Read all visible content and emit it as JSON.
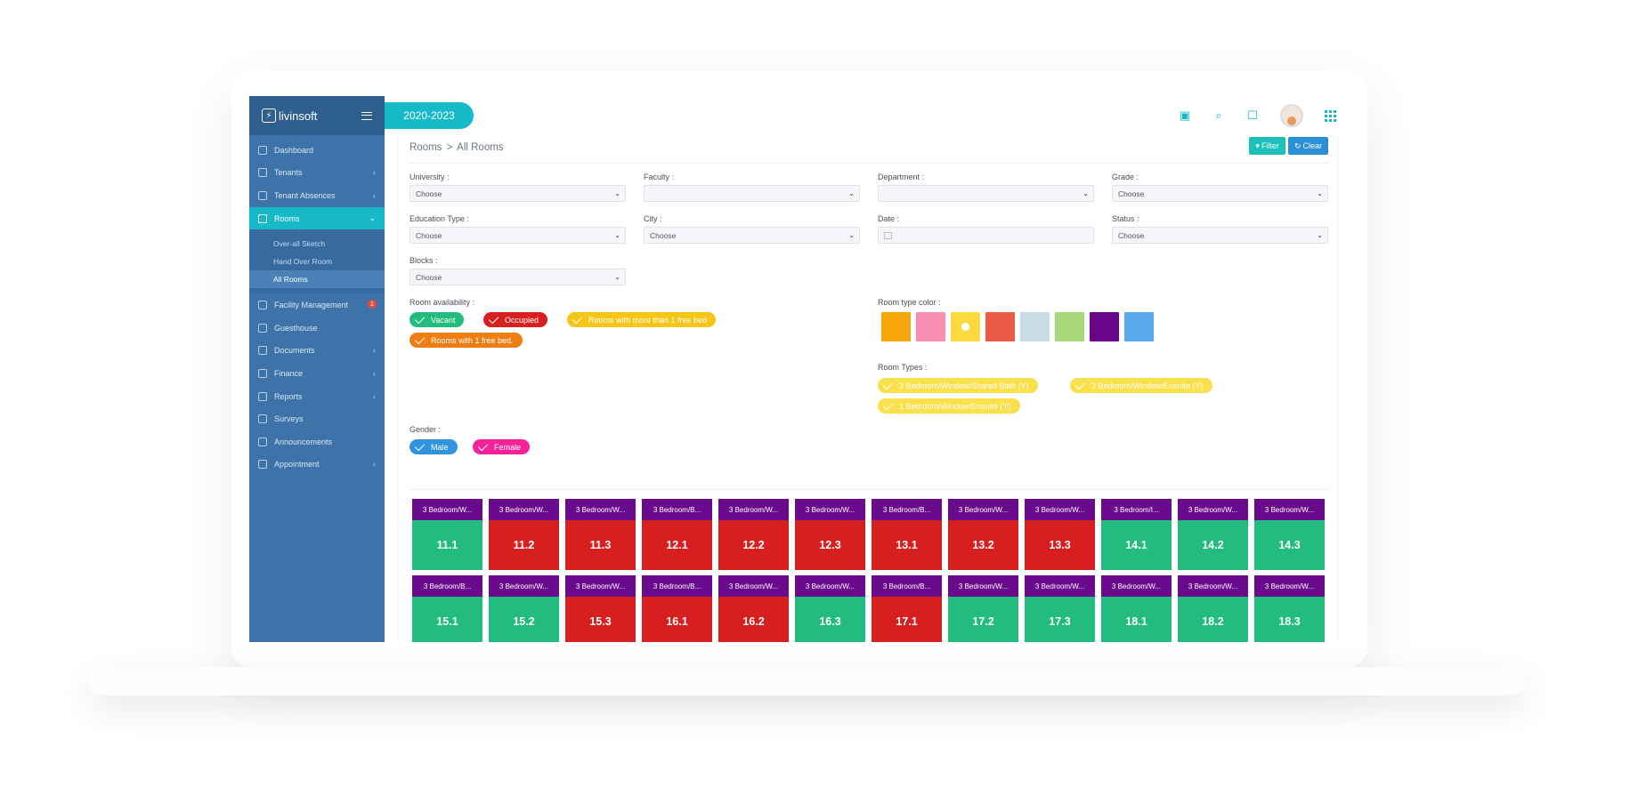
{
  "app": {
    "name": "livinsoft",
    "year": "2020-2023"
  },
  "sidebar": {
    "items": [
      {
        "label": "Dashboard",
        "chevron": false
      },
      {
        "label": "Tenants",
        "chevron": true
      },
      {
        "label": "Tenant Absences",
        "chevron": true
      },
      {
        "label": "Rooms",
        "chevron": true,
        "active": true
      },
      {
        "label": "Facility Management",
        "badge": "1"
      },
      {
        "label": "Guesthouse"
      },
      {
        "label": "Documents",
        "chevron": true
      },
      {
        "label": "Finance",
        "chevron": true
      },
      {
        "label": "Reports",
        "chevron": true
      },
      {
        "label": "Surveys"
      },
      {
        "label": "Announcements"
      },
      {
        "label": "Appointment",
        "chevron": true
      }
    ],
    "rooms_sub": [
      "Over-all Sketch",
      "Hand Over Room",
      "All Rooms"
    ]
  },
  "header": {
    "breadcrumb_root": "Rooms",
    "breadcrumb_sep": ">",
    "breadcrumb_current": "All Rooms",
    "filter_label": "Filter",
    "clear_label": "Clear"
  },
  "filters": {
    "university": {
      "label": "University :",
      "value": "Choose"
    },
    "faculty": {
      "label": "Faculty :",
      "value": ""
    },
    "department": {
      "label": "Department :",
      "value": ""
    },
    "grade": {
      "label": "Grade :",
      "value": "Choose"
    },
    "education_type": {
      "label": "Education Type :",
      "value": "Choose"
    },
    "city": {
      "label": "City :",
      "value": "Choose"
    },
    "date": {
      "label": "Date :",
      "value": ""
    },
    "status": {
      "label": "Status :",
      "value": "Choose"
    },
    "blocks": {
      "label": "Blocks :",
      "value": "Choose"
    }
  },
  "availability": {
    "label": "Room availability :",
    "vacant": "Vacant",
    "occupied": "Occupied",
    "more_than_one": "Rooms with more than 1 free bed",
    "one_free": "Rooms with 1 free bed."
  },
  "room_type_color": {
    "label": "Room type color :",
    "colors": [
      "#f7a70c",
      "#f78fb3",
      "#fbd93f",
      "#ea5a47",
      "#c8dce6",
      "#a8d877",
      "#6a068a",
      "#5aa7ec"
    ]
  },
  "room_types": {
    "label": "Room Types :",
    "items": [
      "3 Bedroom/Window/Shared Bath (Y)",
      "3 Bedroom/Window/Ensuite (Y)",
      "1 Bedroom/Window/Ensuite (Y)"
    ]
  },
  "gender": {
    "label": "Gender :",
    "male": "Male",
    "female": "Female"
  },
  "rooms": [
    {
      "type": "3 Bedroom/W...",
      "number": "11.1",
      "status": "vacant"
    },
    {
      "type": "3 Bedroom/W...",
      "number": "11.2",
      "status": "occupied"
    },
    {
      "type": "3 Bedroom/W...",
      "number": "11.3",
      "status": "occupied"
    },
    {
      "type": "3 Bedroom/B...",
      "number": "12.1",
      "status": "occupied"
    },
    {
      "type": "3 Bedroom/W...",
      "number": "12.2",
      "status": "occupied"
    },
    {
      "type": "3 Bedroom/W...",
      "number": "12.3",
      "status": "occupied"
    },
    {
      "type": "3 Bedroom/B...",
      "number": "13.1",
      "status": "occupied"
    },
    {
      "type": "3 Bedroom/W...",
      "number": "13.2",
      "status": "occupied"
    },
    {
      "type": "3 Bedroom/W...",
      "number": "13.3",
      "status": "occupied"
    },
    {
      "type": "3 Bedroom/I...",
      "number": "14.1",
      "status": "vacant"
    },
    {
      "type": "3 Bedroom/W...",
      "number": "14.2",
      "status": "vacant"
    },
    {
      "type": "3 Bedroom/W...",
      "number": "14.3",
      "status": "vacant"
    },
    {
      "type": "3 Bedroom/B...",
      "number": "15.1",
      "status": "vacant"
    },
    {
      "type": "3 Bedroom/W...",
      "number": "15.2",
      "status": "vacant"
    },
    {
      "type": "3 Bedroom/W...",
      "number": "15.3",
      "status": "occupied"
    },
    {
      "type": "3 Bedroom/B...",
      "number": "16.1",
      "status": "occupied"
    },
    {
      "type": "3 Bedroom/W...",
      "number": "16.2",
      "status": "occupied"
    },
    {
      "type": "3 Bedroom/W...",
      "number": "16.3",
      "status": "vacant"
    },
    {
      "type": "3 Bedroom/B...",
      "number": "17.1",
      "status": "occupied"
    },
    {
      "type": "3 Bedroom/W...",
      "number": "17.2",
      "status": "vacant"
    },
    {
      "type": "3 Bedroom/W...",
      "number": "17.3",
      "status": "vacant"
    },
    {
      "type": "3 Bedroom/W...",
      "number": "18.1",
      "status": "vacant"
    },
    {
      "type": "3 Bedroom/W...",
      "number": "18.2",
      "status": "vacant"
    },
    {
      "type": "3 Bedroom/W...",
      "number": "18.3",
      "status": "vacant"
    }
  ]
}
